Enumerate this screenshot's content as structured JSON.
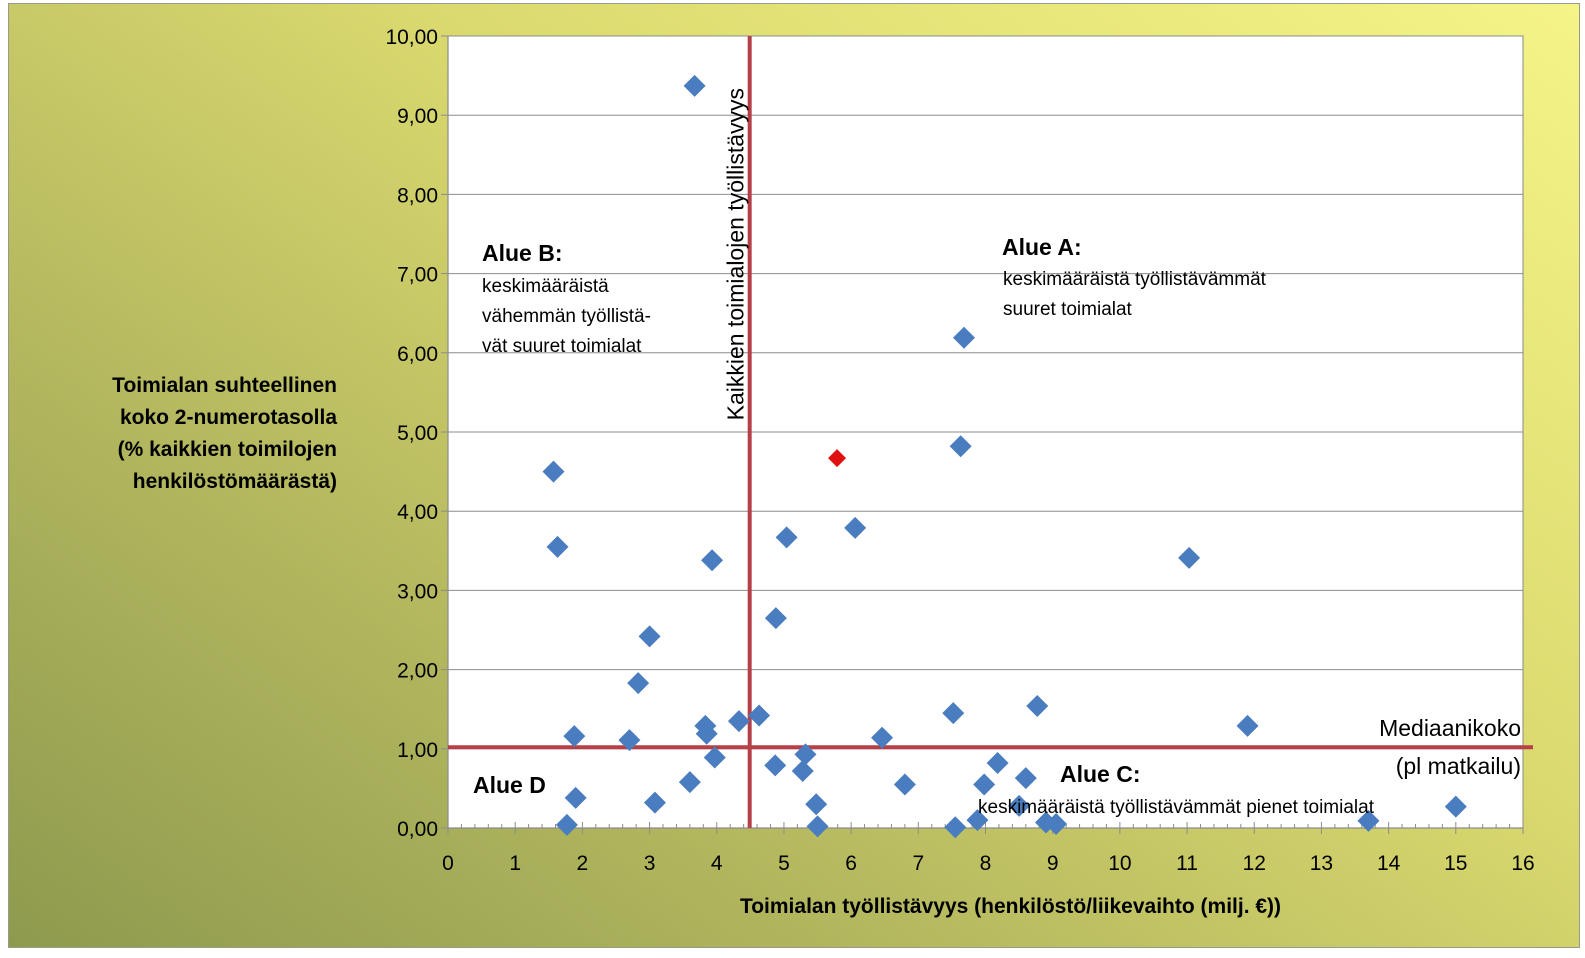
{
  "chart_data": {
    "type": "scatter",
    "title": "",
    "xlabel": "Toimialan työllistävyys (henkilöstö/liikevaihto (milj. €))",
    "ylabel": [
      "Toimialan suhteellinen",
      "koko 2-numerotasolla",
      "(% kaikkien toimilojen",
      "henkilöstömäärästä)"
    ],
    "xlim": [
      0,
      16
    ],
    "ylim": [
      0,
      10
    ],
    "x_ticks": [
      "0",
      "1",
      "2",
      "3",
      "4",
      "5",
      "6",
      "7",
      "8",
      "9",
      "10",
      "11",
      "12",
      "13",
      "14",
      "15",
      "16"
    ],
    "y_ticks": [
      "0,00",
      "1,00",
      "2,00",
      "3,00",
      "4,00",
      "5,00",
      "6,00",
      "7,00",
      "8,00",
      "9,00",
      "10,00"
    ],
    "grid": "horizontal",
    "colors": {
      "points": "#4a7dbf",
      "highlight": "#e01010",
      "reference_lines": "#b54048"
    },
    "series": [
      {
        "points": [
          [
            3.67,
            9.37
          ],
          [
            7.68,
            6.19
          ],
          [
            7.63,
            4.82
          ],
          [
            1.57,
            4.5
          ],
          [
            6.06,
            3.79
          ],
          [
            5.04,
            3.67
          ],
          [
            1.63,
            3.55
          ],
          [
            3.93,
            3.38
          ],
          [
            11.03,
            3.41
          ],
          [
            4.88,
            2.65
          ],
          [
            3.0,
            2.42
          ],
          [
            2.83,
            1.83
          ],
          [
            8.77,
            1.54
          ],
          [
            7.52,
            1.45
          ],
          [
            4.63,
            1.42
          ],
          [
            4.33,
            1.35
          ],
          [
            3.83,
            1.29
          ],
          [
            11.9,
            1.29
          ],
          [
            3.85,
            1.19
          ],
          [
            1.88,
            1.16
          ],
          [
            6.46,
            1.14
          ],
          [
            2.7,
            1.11
          ],
          [
            5.32,
            0.93
          ],
          [
            3.97,
            0.89
          ],
          [
            8.18,
            0.82
          ],
          [
            4.87,
            0.79
          ],
          [
            5.28,
            0.72
          ],
          [
            8.6,
            0.63
          ],
          [
            3.6,
            0.58
          ],
          [
            6.8,
            0.55
          ],
          [
            7.98,
            0.55
          ],
          [
            1.9,
            0.38
          ],
          [
            3.08,
            0.32
          ],
          [
            5.48,
            0.3
          ],
          [
            8.5,
            0.28
          ],
          [
            15.0,
            0.27
          ],
          [
            7.88,
            0.1
          ],
          [
            13.7,
            0.09
          ],
          [
            8.9,
            0.07
          ],
          [
            9.05,
            0.05
          ],
          [
            1.77,
            0.04
          ],
          [
            5.5,
            0.02
          ],
          [
            7.55,
            0.01
          ]
        ]
      },
      {
        "points": [
          [
            5.79,
            4.67
          ]
        ]
      }
    ],
    "reference_lines": [
      {
        "axis": "x",
        "value": 4.49,
        "label": "Kaikkien toimialojen työllistävyys"
      },
      {
        "axis": "y",
        "value": 1.02,
        "label": [
          "Mediaanikoko",
          "(pl matkailu)"
        ]
      }
    ],
    "regions": [
      {
        "title": "Alue A:",
        "text": [
          "keskimääräistä työllistävämmät",
          "suuret toimialat"
        ]
      },
      {
        "title": "Alue B:",
        "text": [
          "keskimääräistä",
          "vähemmän työllistä-",
          "vät  suuret toimialat"
        ]
      },
      {
        "title": "Alue C:",
        "text": [
          "keskimääräistä työllistävämmät pienet toimialat"
        ]
      },
      {
        "title": "Alue D",
        "text": []
      }
    ]
  }
}
